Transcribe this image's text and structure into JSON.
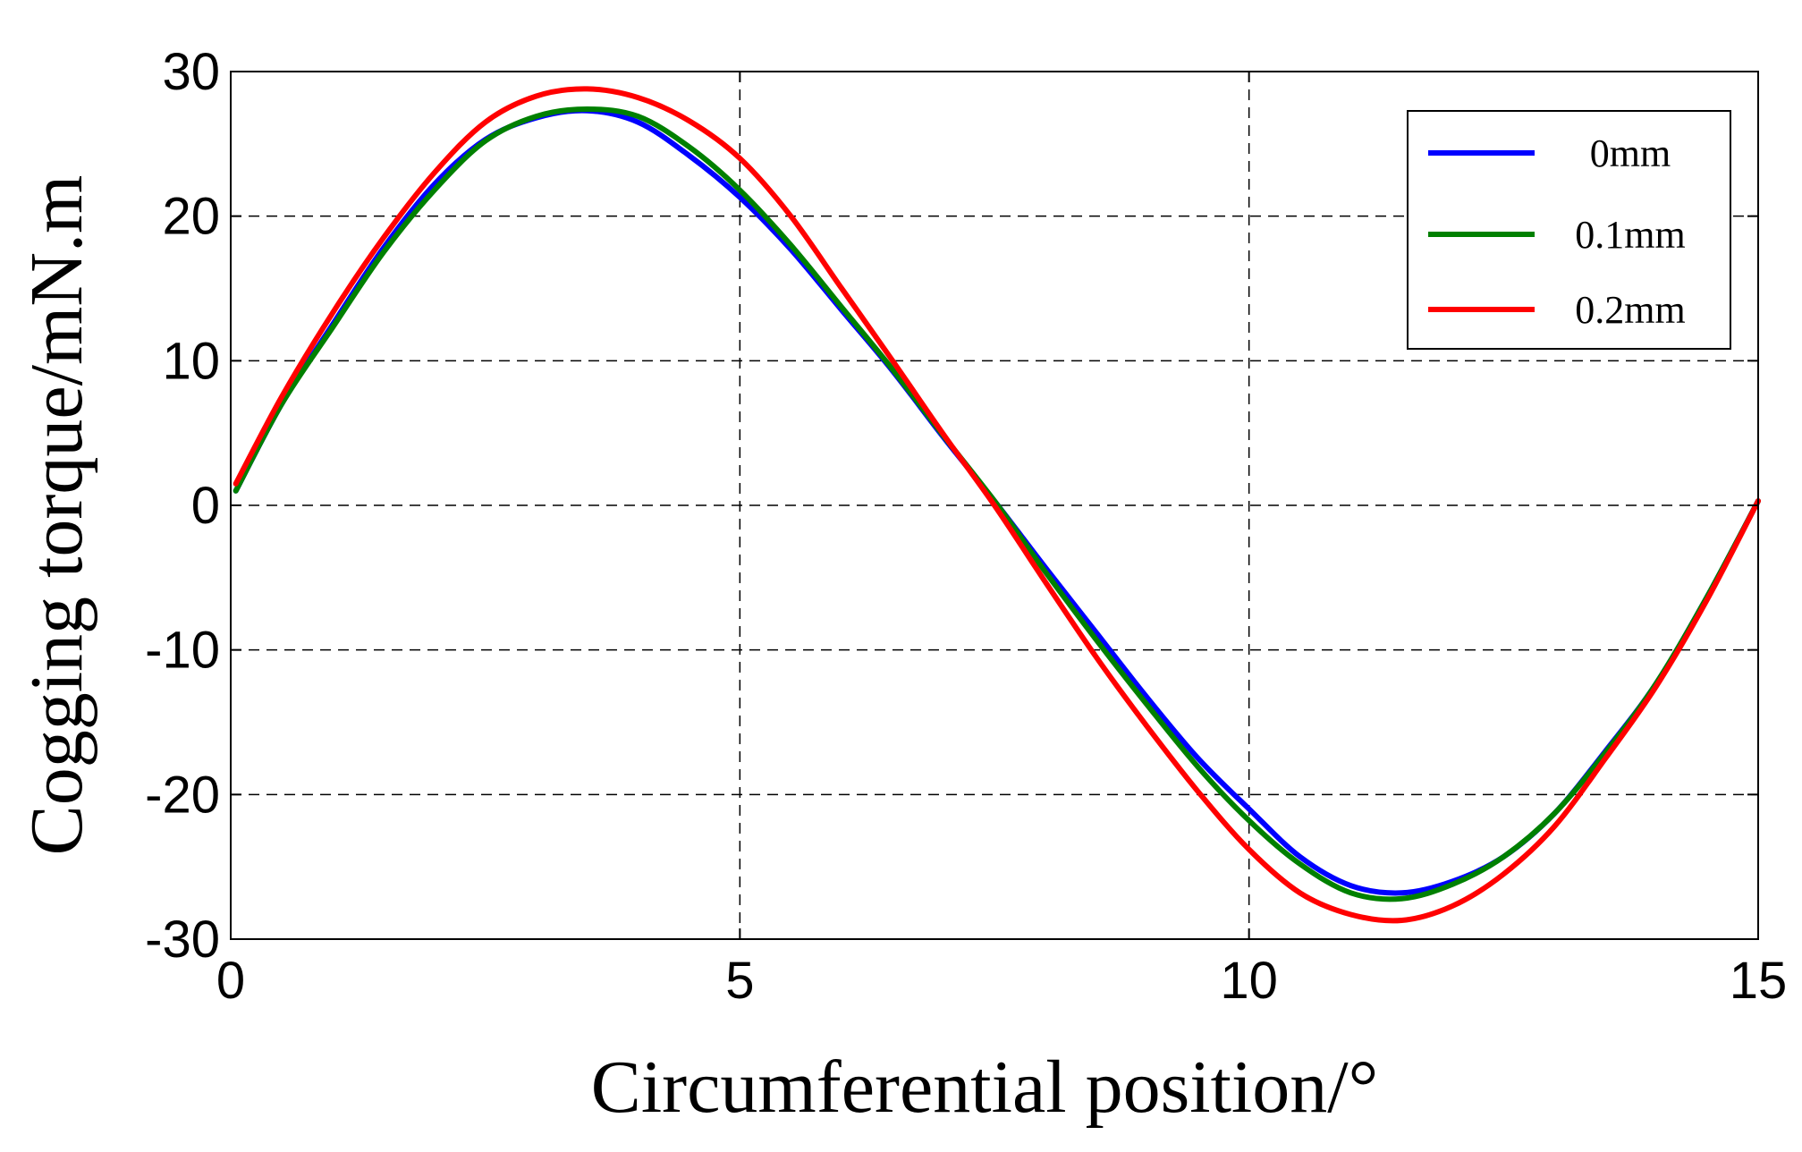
{
  "chart_data": {
    "type": "line",
    "title": "",
    "xlabel": "Circumferential position/°",
    "ylabel": "Cogging torque/mN.m",
    "xlim": [
      0,
      15
    ],
    "ylim": [
      -30,
      30
    ],
    "xticks": [
      0,
      5,
      10,
      15
    ],
    "yticks": [
      30,
      20,
      10,
      0,
      -10,
      -20,
      -30
    ],
    "xtick_labels": [
      "0",
      "5",
      "10",
      "15"
    ],
    "ytick_labels": [
      "30",
      "20",
      "10",
      "0",
      "-10",
      "-20",
      "-30"
    ],
    "grid": "dashed",
    "legend_position": "top-right",
    "series": [
      {
        "name": "0mm",
        "color": "#0000ff",
        "x": [
          0.05,
          0.5,
          1.0,
          1.5,
          2.0,
          2.5,
          3.0,
          3.5,
          4.0,
          4.5,
          5.0,
          5.5,
          6.0,
          6.5,
          7.0,
          7.5,
          8.0,
          8.5,
          9.0,
          9.5,
          10.0,
          10.5,
          11.0,
          11.5,
          12.0,
          12.5,
          13.0,
          13.5,
          14.0,
          14.5,
          15.0
        ],
        "y": [
          1.0,
          7.0,
          12.5,
          17.8,
          22.2,
          25.3,
          26.8,
          27.3,
          26.5,
          24.2,
          21.3,
          17.7,
          13.5,
          9.3,
          4.7,
          0.3,
          -4.3,
          -8.8,
          -13.3,
          -17.5,
          -21.0,
          -24.3,
          -26.3,
          -26.8,
          -26.0,
          -24.3,
          -21.3,
          -17.0,
          -12.3,
          -6.3,
          0.3
        ]
      },
      {
        "name": "0.1mm",
        "color": "#008000",
        "x": [
          0.05,
          0.5,
          1.0,
          1.5,
          2.0,
          2.5,
          3.0,
          3.5,
          4.0,
          4.5,
          5.0,
          5.5,
          6.0,
          6.5,
          7.0,
          7.5,
          8.0,
          8.5,
          9.0,
          9.5,
          10.0,
          10.5,
          11.0,
          11.5,
          12.0,
          12.5,
          13.0,
          13.5,
          14.0,
          14.5,
          15.0
        ],
        "y": [
          1.0,
          7.0,
          12.3,
          17.5,
          21.8,
          25.2,
          26.9,
          27.4,
          26.9,
          24.8,
          21.8,
          18.0,
          13.7,
          9.4,
          4.8,
          0.3,
          -4.6,
          -9.3,
          -13.8,
          -18.1,
          -21.8,
          -24.8,
          -26.8,
          -27.2,
          -26.2,
          -24.3,
          -21.3,
          -17.1,
          -12.3,
          -6.3,
          0.3
        ]
      },
      {
        "name": "0.2mm",
        "color": "#ff0000",
        "x": [
          0.05,
          0.5,
          1.0,
          1.5,
          2.0,
          2.5,
          3.0,
          3.5,
          4.0,
          4.5,
          5.0,
          5.5,
          6.0,
          6.5,
          7.0,
          7.5,
          8.0,
          8.5,
          9.0,
          9.5,
          10.0,
          10.5,
          11.0,
          11.5,
          12.0,
          12.5,
          13.0,
          13.5,
          14.0,
          14.5,
          15.0
        ],
        "y": [
          1.5,
          7.5,
          13.3,
          18.5,
          23.0,
          26.5,
          28.3,
          28.8,
          28.2,
          26.6,
          24.0,
          20.0,
          15.0,
          10.0,
          4.9,
          0.0,
          -5.3,
          -10.5,
          -15.3,
          -19.8,
          -23.8,
          -26.8,
          -28.3,
          -28.7,
          -27.7,
          -25.5,
          -22.2,
          -17.5,
          -12.5,
          -6.5,
          0.3
        ]
      }
    ]
  }
}
